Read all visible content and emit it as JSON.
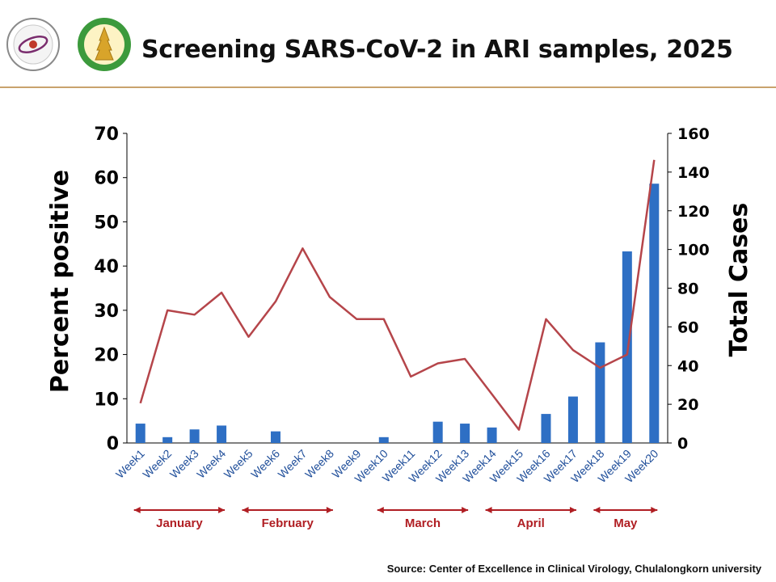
{
  "header": {
    "title": "Screening SARS-CoV-2 in ARI samples, 2025",
    "source": "Source: Center of Excellence in Clinical Virology, Chulalongkorn university"
  },
  "colors": {
    "bar": "#2e6fc4",
    "line": "#b5454a",
    "month_arrow": "#b01e23",
    "rule": "#c9a36d"
  },
  "chart_data": {
    "type": "bar",
    "title": "Screening SARS-CoV-2 in ARI samples, 2025",
    "categories": [
      "Week1",
      "Week2",
      "Week3",
      "Week4",
      "Week5",
      "Week6",
      "Week7",
      "Week8",
      "Week9",
      "Week10",
      "Week11",
      "Week12",
      "Week13",
      "Week14",
      "Week15",
      "Week16",
      "Week17",
      "Week18",
      "Week19",
      "Week20"
    ],
    "series": [
      {
        "type": "bar",
        "axis": "right",
        "values": [
          10,
          3,
          7,
          9,
          0,
          6,
          0,
          0,
          0,
          3,
          0,
          11,
          10,
          8,
          0,
          15,
          24,
          52,
          99,
          134
        ]
      },
      {
        "type": "line",
        "axis": "left",
        "values": [
          9,
          30,
          29,
          34,
          24,
          32,
          44,
          33,
          28,
          28,
          15,
          18,
          19,
          11,
          3,
          28,
          21,
          17,
          20,
          64
        ]
      }
    ],
    "ylabel": "Percent positive",
    "y2label": "Total Cases",
    "ylim": [
      0,
      70
    ],
    "y2lim": [
      0,
      160
    ],
    "yticks": [
      0,
      10,
      20,
      30,
      40,
      50,
      60,
      70
    ],
    "y2ticks": [
      0,
      20,
      40,
      60,
      80,
      100,
      120,
      140,
      160
    ],
    "grid": false,
    "months": [
      {
        "label": "January",
        "from": "Week1",
        "to": "Week4"
      },
      {
        "label": "February",
        "from": "Week5",
        "to": "Week8"
      },
      {
        "label": "March",
        "from": "Week10",
        "to": "Week13"
      },
      {
        "label": "April",
        "from": "Week14",
        "to": "Week17"
      },
      {
        "label": "May",
        "from": "Week18",
        "to": "Week20"
      }
    ]
  }
}
